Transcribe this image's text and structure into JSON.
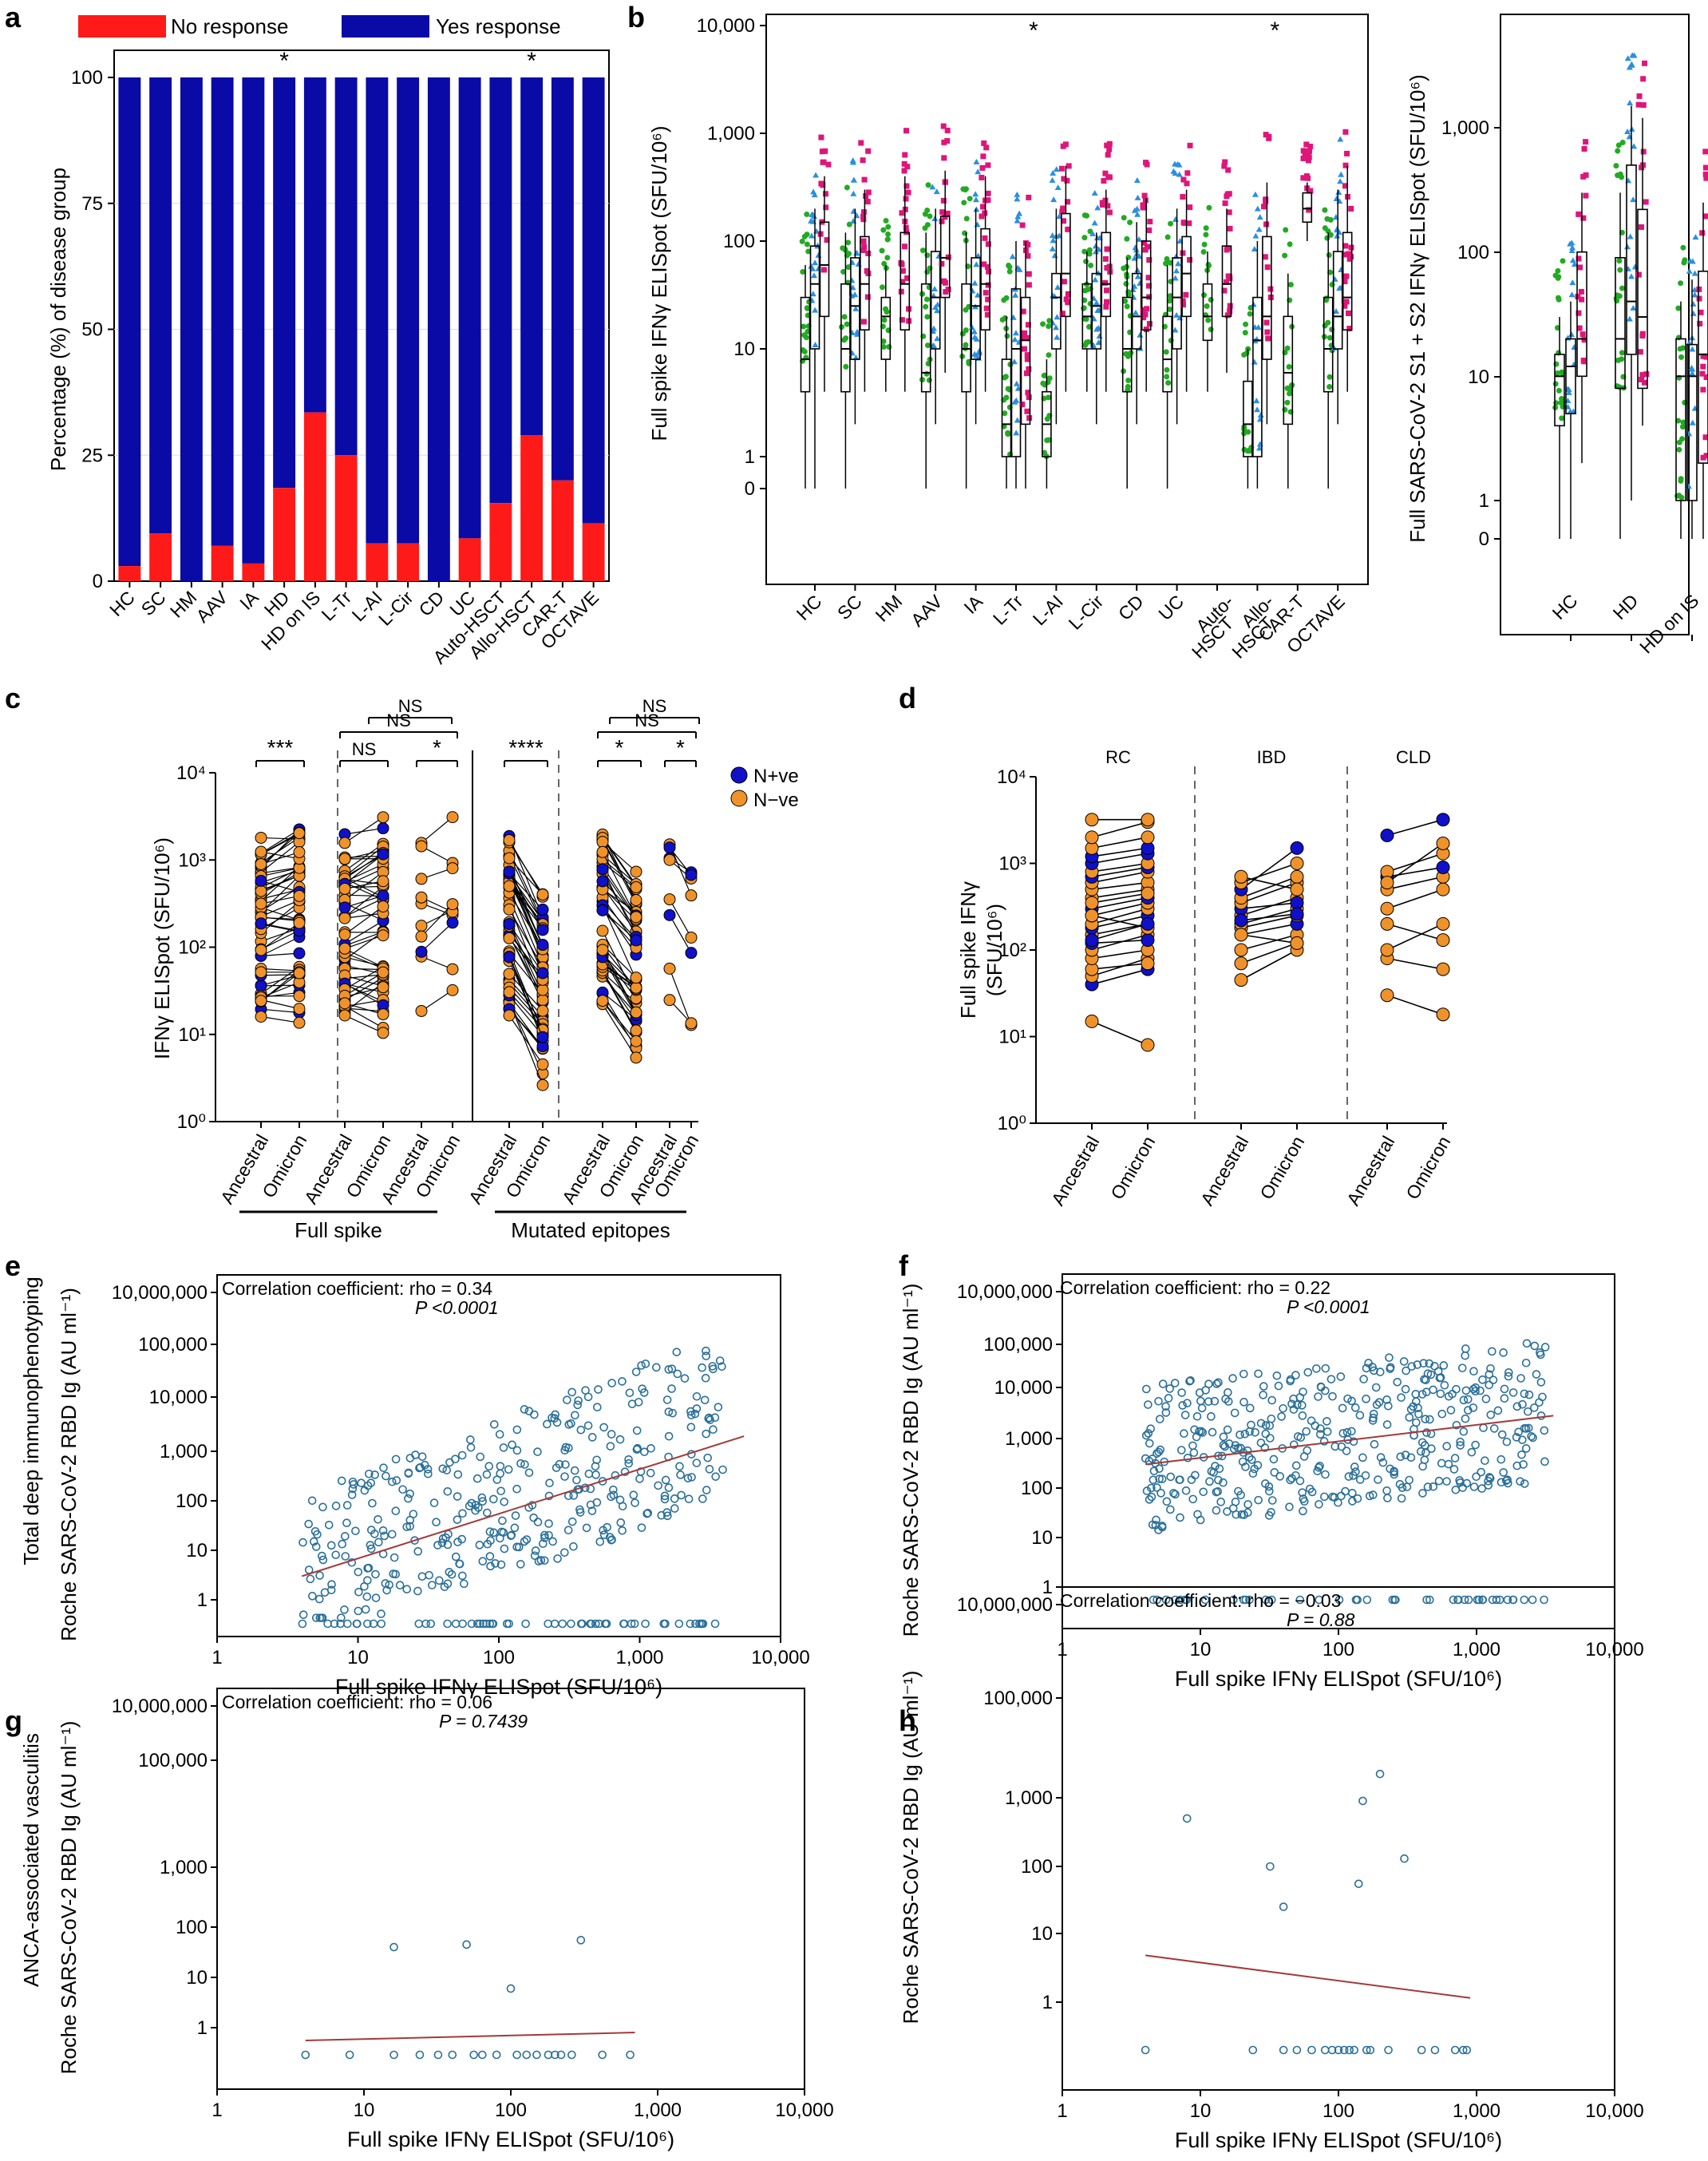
{
  "colors": {
    "no_response": "#ff1a1a",
    "yes_response": "#0a0aa6",
    "green": "#22aa22",
    "blue": "#2a8fe0",
    "magenta": "#e0157a",
    "npos": "#1010c8",
    "nneg": "#f0922a",
    "scatter": "#2a6f99",
    "trend": "#a33a3a"
  },
  "panels": {
    "a": "a",
    "b": "b",
    "c": "c",
    "d": "d",
    "e": "e",
    "f": "f",
    "g": "g",
    "h": "h"
  },
  "side_labels": {
    "e": "Total deep immunophenotyping",
    "g": "ANCA-associated vasculitis"
  },
  "chart_data": [
    {
      "id": "a",
      "type": "bar",
      "stacked": true,
      "ylabel": "Percentage (%) of disease group",
      "ylim": [
        0,
        100
      ],
      "yticks": [
        0,
        25,
        50,
        75,
        100
      ],
      "legend": [
        "No response",
        "Yes response"
      ],
      "categories": [
        "HC",
        "SC",
        "HM",
        "AAV",
        "IA",
        "HD",
        "HD on IS",
        "L-Tr",
        "L-AI",
        "L-Cir",
        "CD",
        "UC",
        "Auto-HSCT",
        "Allo-HSCT",
        "CAR-T",
        "OCTAVE"
      ],
      "series": [
        {
          "name": "No response",
          "values": [
            3,
            9.5,
            0,
            7,
            3.5,
            18.5,
            33.5,
            25,
            7.5,
            7.5,
            0,
            8.5,
            15.5,
            29,
            20,
            11.5
          ]
        },
        {
          "name": "Yes response",
          "values": [
            97,
            90.5,
            100,
            93,
            96.5,
            81.5,
            66.5,
            75,
            92.5,
            92.5,
            100,
            91.5,
            84.5,
            71,
            80,
            88.5
          ]
        }
      ],
      "annotations": [
        {
          "category": "HD",
          "text": "*"
        },
        {
          "category": "Allo-HSCT",
          "text": "*"
        }
      ]
    },
    {
      "id": "b1",
      "type": "box",
      "ylabel": "Full spike IFNγ ELISpot (SFU/10⁶)",
      "yticks": [
        "0",
        "1",
        "10",
        "100",
        "1,000",
        "10,000"
      ],
      "categories": [
        "HC",
        "SC",
        "HM",
        "AAV",
        "IA",
        "L-Tr",
        "L-AI",
        "L-Cir",
        "CD",
        "UC",
        "Auto-HSCT",
        "Allo-HSCT",
        "CAR-T",
        "OCTAVE"
      ],
      "series_per_category": [
        "green",
        "blue",
        "magenta"
      ],
      "boxes": [
        [
          [
            0,
            4,
            8,
            30,
            60
          ],
          [
            0,
            10,
            40,
            90,
            200
          ],
          [
            4,
            20,
            60,
            150,
            400
          ]
        ],
        [
          [
            0,
            4,
            10,
            40,
            120
          ],
          [
            2,
            8,
            25,
            70,
            200
          ],
          [
            4,
            15,
            40,
            110,
            300
          ]
        ],
        [
          [
            4,
            8,
            20,
            30,
            60
          ],
          [
            null,
            null,
            null,
            null,
            null
          ],
          [
            4,
            15,
            40,
            120,
            400
          ]
        ],
        [
          [
            0,
            4,
            6,
            40,
            120
          ],
          [
            2,
            10,
            30,
            80,
            200
          ],
          [
            6,
            30,
            70,
            170,
            450
          ]
        ],
        [
          [
            0,
            4,
            10,
            40,
            120
          ],
          [
            2,
            8,
            25,
            70,
            200
          ],
          [
            4,
            15,
            40,
            130,
            400
          ]
        ],
        [
          [
            0,
            1,
            2,
            8,
            20
          ],
          [
            0,
            1,
            10,
            36,
            100
          ],
          [
            0,
            2,
            12,
            30,
            100
          ]
        ],
        [
          [
            0,
            1,
            2,
            4,
            8
          ],
          [
            2,
            10,
            30,
            50,
            200
          ],
          [
            4,
            20,
            50,
            180,
            500
          ]
        ],
        [
          [
            4,
            10,
            20,
            40,
            80
          ],
          [
            2,
            10,
            25,
            50,
            120
          ],
          [
            4,
            20,
            40,
            120,
            300
          ]
        ],
        [
          [
            0,
            4,
            10,
            30,
            70
          ],
          [
            2,
            10,
            20,
            50,
            150
          ],
          [
            4,
            15,
            30,
            100,
            250
          ]
        ],
        [
          [
            0,
            4,
            8,
            20,
            60
          ],
          [
            2,
            10,
            30,
            70,
            200
          ],
          [
            4,
            20,
            50,
            110,
            300
          ]
        ],
        [
          [
            4,
            12,
            20,
            40,
            80
          ],
          [
            null,
            null,
            null,
            null,
            null
          ],
          [
            6,
            20,
            40,
            90,
            200
          ]
        ],
        [
          [
            0,
            1,
            2,
            5,
            10
          ],
          [
            0,
            1,
            12,
            30,
            100
          ],
          [
            2,
            8,
            20,
            110,
            350
          ]
        ],
        [
          [
            0,
            2,
            6,
            20,
            50
          ],
          [
            null,
            null,
            null,
            null,
            null
          ],
          [
            100,
            150,
            200,
            280,
            350
          ]
        ],
        [
          [
            0,
            4,
            10,
            30,
            120
          ],
          [
            2,
            10,
            20,
            80,
            300
          ],
          [
            4,
            15,
            30,
            120,
            500
          ]
        ]
      ],
      "annotations": [
        {
          "category": "L-Tr",
          "text": "*"
        },
        {
          "category": "Allo-HSCT",
          "text": "*"
        }
      ]
    },
    {
      "id": "b2",
      "type": "box",
      "ylabel": "Full SARS-CoV-2 S1 + S2 IFNγ ELISpot (SFU/10⁶)",
      "yticks": [
        "0",
        "1",
        "10",
        "100",
        "1,000"
      ],
      "categories": [
        "HC",
        "HD",
        "HD on IS"
      ],
      "series_per_category": [
        "green",
        "blue",
        "magenta"
      ],
      "boxes": [
        [
          [
            0,
            4,
            10,
            15,
            30
          ],
          [
            0,
            5,
            12,
            20,
            40
          ],
          [
            2,
            10,
            20,
            100,
            300
          ]
        ],
        [
          [
            0,
            8,
            20,
            90,
            300
          ],
          [
            1,
            15,
            40,
            500,
            1500
          ],
          [
            4,
            8,
            30,
            220,
            1200
          ]
        ],
        [
          [
            0,
            1,
            10,
            20,
            40
          ],
          [
            0,
            1,
            10,
            18,
            60
          ],
          [
            0,
            2,
            15,
            70,
            250
          ]
        ]
      ]
    },
    {
      "id": "c",
      "type": "paired-line",
      "ylabel": "IFNγ ELISpot (SFU/10⁶)",
      "yticks": [
        "10⁰",
        "10¹",
        "10²",
        "10³",
        "10⁴"
      ],
      "xticks": [
        "Ancestral",
        "Omicron",
        "Ancestral",
        "Omicron",
        "Ancestral",
        "Omicron",
        "Ancestral",
        "Omicron",
        "Ancestral",
        "Omicron",
        "Ancestral",
        "Omicron"
      ],
      "groups": [
        "Full spike",
        "Mutated epitopes"
      ],
      "legend": [
        "N+ve",
        "N−ve"
      ],
      "comparisons": [
        {
          "pair": [
            0,
            1
          ],
          "text": "***"
        },
        {
          "pair": [
            2,
            3
          ],
          "text": "NS"
        },
        {
          "pair": [
            2,
            5
          ],
          "text": "NS"
        },
        {
          "pair": [
            3,
            5
          ],
          "text": "NS"
        },
        {
          "pair": [
            4,
            5
          ],
          "text": "*"
        },
        {
          "pair": [
            6,
            7
          ],
          "text": "****"
        },
        {
          "pair": [
            8,
            9
          ],
          "text": "*"
        },
        {
          "pair": [
            8,
            11
          ],
          "text": "NS"
        },
        {
          "pair": [
            9,
            11
          ],
          "text": "NS"
        },
        {
          "pair": [
            10,
            11
          ],
          "text": "*"
        }
      ]
    },
    {
      "id": "d",
      "type": "paired-line",
      "ylabel": "Full spike IFNγ",
      "ylabel_unit": "(SFU/10⁶)",
      "yticks": [
        "10⁰",
        "10¹",
        "10²",
        "10³",
        "10⁴"
      ],
      "groups": [
        "RC",
        "IBD",
        "CLD"
      ],
      "xticks": [
        "Ancestral",
        "Omicron",
        "Ancestral",
        "Omicron",
        "Ancestral",
        "Omicron"
      ],
      "pairs": [
        [
          [
            15,
            8,
            "nneg"
          ],
          [
            40,
            60,
            "npos"
          ],
          [
            50,
            80,
            "nneg"
          ],
          [
            60,
            70,
            "nneg"
          ],
          [
            80,
            100,
            "nneg"
          ],
          [
            100,
            150,
            "nneg"
          ],
          [
            120,
            130,
            "npos"
          ],
          [
            150,
            200,
            "nneg"
          ],
          [
            180,
            250,
            "npos"
          ],
          [
            200,
            300,
            "nneg"
          ],
          [
            250,
            350,
            "nneg"
          ],
          [
            300,
            400,
            "npos"
          ],
          [
            400,
            500,
            "nneg"
          ],
          [
            500,
            600,
            "nneg"
          ],
          [
            600,
            800,
            "nneg"
          ],
          [
            700,
            900,
            "npos"
          ],
          [
            800,
            1000,
            "nneg"
          ],
          [
            1000,
            1300,
            "npos"
          ],
          [
            1200,
            1500,
            "npos"
          ],
          [
            1500,
            2000,
            "nneg"
          ],
          [
            2000,
            3000,
            "nneg"
          ],
          [
            3200,
            3200,
            "nneg"
          ],
          [
            250,
            180,
            "nneg"
          ],
          [
            350,
            450,
            "nneg"
          ],
          [
            130,
            200,
            "npos"
          ]
        ],
        [
          [
            45,
            100,
            "nneg"
          ],
          [
            70,
            120,
            "nneg"
          ],
          [
            100,
            150,
            "nneg"
          ],
          [
            150,
            200,
            "npos"
          ],
          [
            180,
            250,
            "nneg"
          ],
          [
            200,
            300,
            "nneg"
          ],
          [
            250,
            400,
            "nneg"
          ],
          [
            300,
            350,
            "npos"
          ],
          [
            350,
            600,
            "nneg"
          ],
          [
            400,
            700,
            "nneg"
          ],
          [
            500,
            1500,
            "npos"
          ],
          [
            600,
            1000,
            "nneg"
          ],
          [
            700,
            500,
            "nneg"
          ],
          [
            150,
            120,
            "nneg"
          ],
          [
            220,
            260,
            "npos"
          ]
        ],
        [
          [
            30,
            18,
            "nneg"
          ],
          [
            80,
            60,
            "nneg"
          ],
          [
            100,
            200,
            "nneg"
          ],
          [
            200,
            130,
            "nneg"
          ],
          [
            300,
            500,
            "nneg"
          ],
          [
            500,
            700,
            "nneg"
          ],
          [
            700,
            900,
            "npos"
          ],
          [
            800,
            1300,
            "nneg"
          ],
          [
            2100,
            3200,
            "npos"
          ],
          [
            600,
            1700,
            "nneg"
          ]
        ]
      ]
    },
    {
      "id": "e",
      "type": "scatter",
      "xlabel": "Full spike IFNγ ELISpot (SFU/10⁶)",
      "ylabel": "Roche SARS-CoV-2 RBD Ig (AU ml⁻¹)",
      "xticks": [
        "1",
        "10",
        "100",
        "1,000",
        "10,000"
      ],
      "yticks": [
        "1",
        "10",
        "100",
        "1,000",
        "10,000",
        "100,000",
        "10,000,000"
      ],
      "annotation": "Correlation coefficient: rho = 0.34",
      "pvalue": "P <0.0001",
      "trend": [
        [
          4,
          3
        ],
        [
          5500,
          1900
        ]
      ]
    },
    {
      "id": "f",
      "type": "scatter",
      "xlabel": "Full spike IFNγ ELISpot (SFU/10⁶)",
      "ylabel": "Roche SARS-CoV-2 RBD Ig (AU ml⁻¹)",
      "xticks": [
        "1",
        "10",
        "100",
        "1,000",
        "10,000"
      ],
      "yticks": [
        "1",
        "10",
        "100",
        "1,000",
        "10,000",
        "100,000",
        "10,000,000"
      ],
      "annotation": "Correlation coefficient: rho = 0.22",
      "pvalue": "P <0.0001",
      "trend": [
        [
          4,
          300
        ],
        [
          3600,
          2800
        ]
      ]
    },
    {
      "id": "g",
      "type": "scatter",
      "xlabel": "Full spike IFNγ ELISpot (SFU/10⁶)",
      "ylabel": "Roche SARS-CoV-2 RBD Ig (AU ml⁻¹)",
      "xticks": [
        "1",
        "10",
        "100",
        "1,000",
        "10,000"
      ],
      "yticks": [
        "1",
        "10",
        "100",
        "1,000",
        "100,000",
        "10,000,000"
      ],
      "annotation": "Correlation coefficient: rho = 0.06",
      "pvalue": "P = 0.7439",
      "points": [
        [
          4,
          0.4
        ],
        [
          8,
          0.4
        ],
        [
          16,
          40
        ],
        [
          16,
          0.4
        ],
        [
          24,
          0.4
        ],
        [
          32,
          0.4
        ],
        [
          40,
          0.4
        ],
        [
          50,
          45
        ],
        [
          56,
          0.4
        ],
        [
          64,
          0.4
        ],
        [
          80,
          0.4
        ],
        [
          100,
          6
        ],
        [
          110,
          0.4
        ],
        [
          128,
          0.4
        ],
        [
          150,
          0.4
        ],
        [
          180,
          0.4
        ],
        [
          200,
          0.4
        ],
        [
          220,
          0.4
        ],
        [
          260,
          0.4
        ],
        [
          300,
          55
        ],
        [
          420,
          0.4
        ],
        [
          650,
          0.4
        ]
      ],
      "trend": [
        [
          4,
          0.65
        ],
        [
          700,
          0.85
        ]
      ]
    },
    {
      "id": "h",
      "type": "scatter",
      "xlabel": "Full spike IFNγ ELISpot (SFU/10⁶)",
      "ylabel": "Roche SARS-CoV-2 RBD Ig (AU ml⁻¹)",
      "xticks": [
        "1",
        "10",
        "100",
        "1,000",
        "10,000"
      ],
      "yticks": [
        "1",
        "10",
        "100",
        "1,000",
        "100,000",
        "10,000,000"
      ],
      "annotation": "Correlation coefficient: rho = −0.03",
      "pvalue": "P = 0.88",
      "points": [
        [
          4,
          0.4
        ],
        [
          8,
          500
        ],
        [
          24,
          0.4
        ],
        [
          32,
          100
        ],
        [
          40,
          25
        ],
        [
          40,
          0.4
        ],
        [
          50,
          0.4
        ],
        [
          64,
          0.4
        ],
        [
          80,
          0.4
        ],
        [
          90,
          0.4
        ],
        [
          100,
          0.4
        ],
        [
          110,
          0.4
        ],
        [
          120,
          0.4
        ],
        [
          130,
          0.4
        ],
        [
          140,
          55
        ],
        [
          150,
          900
        ],
        [
          160,
          0.4
        ],
        [
          170,
          0.4
        ],
        [
          200,
          3000
        ],
        [
          230,
          0.4
        ],
        [
          300,
          130
        ],
        [
          400,
          0.4
        ],
        [
          500,
          0.4
        ],
        [
          700,
          0.4
        ],
        [
          800,
          0.4
        ],
        [
          850,
          0.4
        ]
      ],
      "trend": [
        [
          4,
          4.8
        ],
        [
          900,
          1.15
        ]
      ]
    }
  ]
}
